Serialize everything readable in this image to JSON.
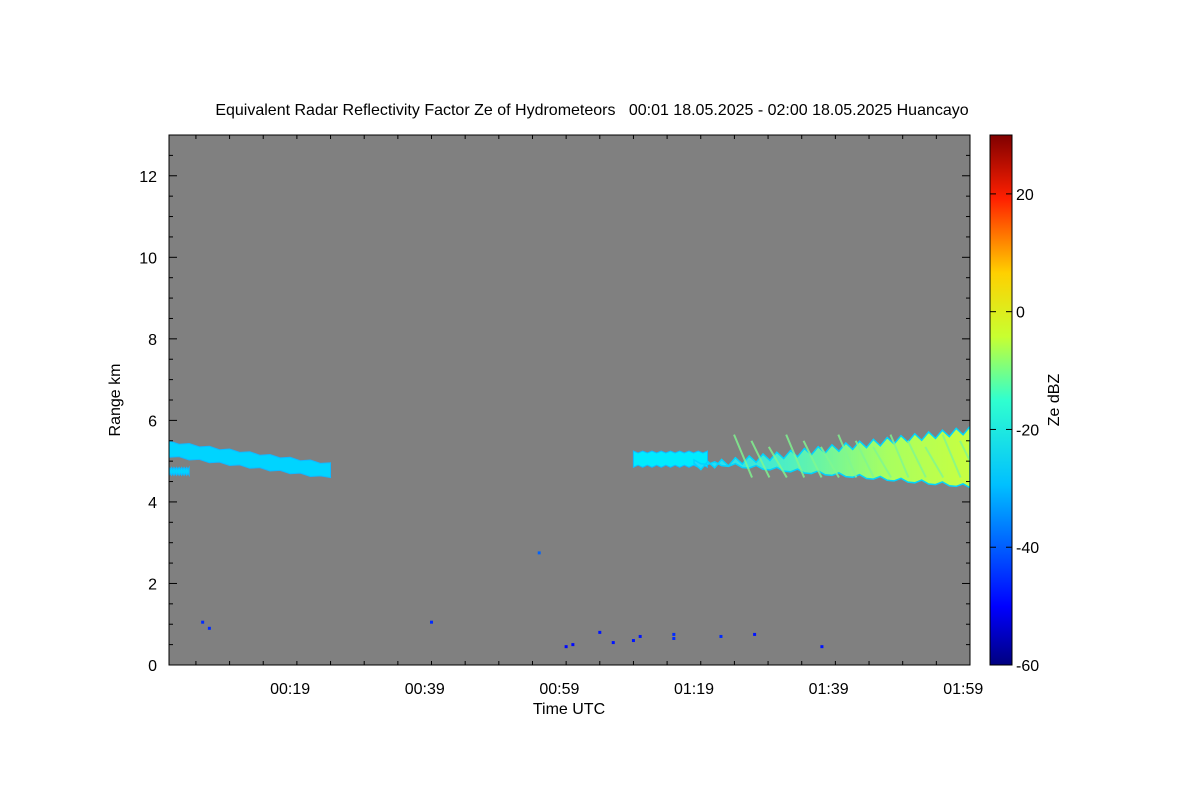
{
  "chart_data": {
    "type": "heatmap",
    "title": "Equivalent Radar Reflectivity Factor Ze of Hydrometeors   00:01 18.05.2025 - 02:00 18.05.2025 Huancayo",
    "xlabel": "Time UTC",
    "ylabel": "Range km",
    "xlim_minutes_utc": [
      1,
      120
    ],
    "ylim": [
      0,
      13
    ],
    "x_tick_labels": [
      "00:19",
      "00:39",
      "00:59",
      "01:19",
      "01:39",
      "01:59"
    ],
    "x_tick_values_minutes_utc": [
      19,
      39,
      59,
      79,
      99,
      119
    ],
    "y_ticks": [
      0,
      2,
      4,
      6,
      8,
      10,
      12
    ],
    "y_tick_labels": [
      "0",
      "2",
      "4",
      "6",
      "8",
      "10",
      "12"
    ],
    "background_color": "#808080",
    "colorbar": {
      "label": "Ze dBZ",
      "range": [
        -60,
        30
      ],
      "ticks": [
        -60,
        -40,
        -20,
        0,
        20
      ],
      "tick_labels": [
        "-60",
        "-40",
        "-20",
        "0",
        "20"
      ],
      "colormap": "jet"
    },
    "features": [
      {
        "name": "cloud-layer-early",
        "start_time": "00:01",
        "end_time": "00:25",
        "base_km": 4.6,
        "top_km": 5.5,
        "ze_dbz": -30
      },
      {
        "name": "cloud-layer-early-fragment",
        "start_time": "00:01",
        "end_time": "00:04",
        "base_km": 4.6,
        "top_km": 4.85,
        "ze_dbz": -30
      },
      {
        "name": "cloud-layer-late-leading",
        "start_time": "01:10",
        "end_time": "01:21",
        "base_km": 4.75,
        "top_km": 5.25,
        "ze_dbz": -28
      },
      {
        "name": "cloud-layer-late-main",
        "start_time": "01:19",
        "end_time": "02:00",
        "base_km": 4.35,
        "top_km": 5.85,
        "ze_dbz_min": -30,
        "ze_dbz_max": -12
      }
    ],
    "echo_points": [
      {
        "time": "00:06",
        "range_km": 1.05,
        "ze_dbz": -45
      },
      {
        "time": "00:07",
        "range_km": 0.9,
        "ze_dbz": -45
      },
      {
        "time": "00:40",
        "range_km": 1.05,
        "ze_dbz": -45
      },
      {
        "time": "00:56",
        "range_km": 2.75,
        "ze_dbz": -40
      },
      {
        "time": "01:00",
        "range_km": 0.45,
        "ze_dbz": -48
      },
      {
        "time": "01:01",
        "range_km": 0.5,
        "ze_dbz": -48
      },
      {
        "time": "01:05",
        "range_km": 0.8,
        "ze_dbz": -47
      },
      {
        "time": "01:07",
        "range_km": 0.55,
        "ze_dbz": -47
      },
      {
        "time": "01:10",
        "range_km": 0.6,
        "ze_dbz": -47
      },
      {
        "time": "01:11",
        "range_km": 0.7,
        "ze_dbz": -47
      },
      {
        "time": "01:16",
        "range_km": 0.75,
        "ze_dbz": -45
      },
      {
        "time": "01:16",
        "range_km": 0.65,
        "ze_dbz": -45
      },
      {
        "time": "01:23",
        "range_km": 0.7,
        "ze_dbz": -45
      },
      {
        "time": "01:28",
        "range_km": 0.75,
        "ze_dbz": -47
      },
      {
        "time": "01:38",
        "range_km": 0.45,
        "ze_dbz": -47
      }
    ]
  }
}
